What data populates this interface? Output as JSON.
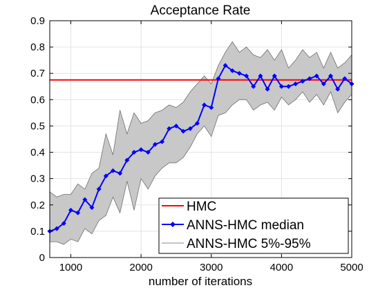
{
  "chart_data": {
    "type": "line",
    "title": "Acceptance Rate",
    "xlabel": "number of iterations",
    "ylabel": "",
    "xlim": [
      700,
      5000
    ],
    "ylim": [
      0,
      0.9
    ],
    "xticks": [
      1000,
      2000,
      3000,
      4000,
      5000
    ],
    "yticks": [
      0,
      0.1,
      0.2,
      0.3,
      0.4,
      0.5,
      0.6,
      0.7,
      0.8,
      0.9
    ],
    "xtick_labels": [
      "1000",
      "2000",
      "3000",
      "4000",
      "5000"
    ],
    "ytick_labels": [
      "0",
      "0.1",
      "0.2",
      "0.3",
      "0.4",
      "0.5",
      "0.6",
      "0.7",
      "0.8",
      "0.9"
    ],
    "grid": true,
    "legend_position": "bottom-right",
    "x": [
      700,
      800,
      900,
      1000,
      1100,
      1200,
      1300,
      1400,
      1500,
      1600,
      1700,
      1800,
      1900,
      2000,
      2100,
      2200,
      2300,
      2400,
      2500,
      2600,
      2700,
      2800,
      2900,
      3000,
      3100,
      3200,
      3300,
      3400,
      3500,
      3600,
      3700,
      3800,
      3900,
      4000,
      4100,
      4200,
      4300,
      4400,
      4500,
      4600,
      4700,
      4800,
      4900,
      5000
    ],
    "series": [
      {
        "name": "HMC",
        "kind": "hline",
        "value": 0.675,
        "color": "#ff0000"
      },
      {
        "name": "ANNS-HMC median",
        "kind": "line",
        "color": "#0000ff",
        "values": [
          0.1,
          0.11,
          0.13,
          0.18,
          0.17,
          0.22,
          0.19,
          0.26,
          0.31,
          0.33,
          0.32,
          0.37,
          0.4,
          0.41,
          0.4,
          0.43,
          0.44,
          0.49,
          0.5,
          0.48,
          0.49,
          0.51,
          0.58,
          0.57,
          0.68,
          0.73,
          0.71,
          0.7,
          0.69,
          0.65,
          0.69,
          0.64,
          0.69,
          0.65,
          0.65,
          0.66,
          0.67,
          0.68,
          0.69,
          0.66,
          0.69,
          0.64,
          0.68,
          0.66
        ]
      },
      {
        "name": "ANNS-HMC 5%-95%",
        "kind": "band",
        "color": "#c8c8c8",
        "upper": [
          0.25,
          0.23,
          0.24,
          0.24,
          0.28,
          0.26,
          0.32,
          0.34,
          0.47,
          0.39,
          0.56,
          0.47,
          0.55,
          0.51,
          0.52,
          0.55,
          0.56,
          0.58,
          0.57,
          0.59,
          0.63,
          0.66,
          0.69,
          0.66,
          0.73,
          0.78,
          0.82,
          0.78,
          0.8,
          0.77,
          0.76,
          0.79,
          0.75,
          0.79,
          0.72,
          0.75,
          0.79,
          0.76,
          0.78,
          0.72,
          0.78,
          0.72,
          0.74,
          0.77
        ],
        "lower": [
          0.06,
          0.06,
          0.05,
          0.07,
          0.06,
          0.11,
          0.09,
          0.14,
          0.16,
          0.23,
          0.17,
          0.29,
          0.18,
          0.3,
          0.26,
          0.31,
          0.34,
          0.36,
          0.36,
          0.38,
          0.42,
          0.47,
          0.5,
          0.46,
          0.54,
          0.55,
          0.58,
          0.6,
          0.6,
          0.56,
          0.58,
          0.59,
          0.56,
          0.61,
          0.58,
          0.6,
          0.63,
          0.59,
          0.62,
          0.58,
          0.63,
          0.55,
          0.59,
          0.62
        ]
      }
    ]
  }
}
